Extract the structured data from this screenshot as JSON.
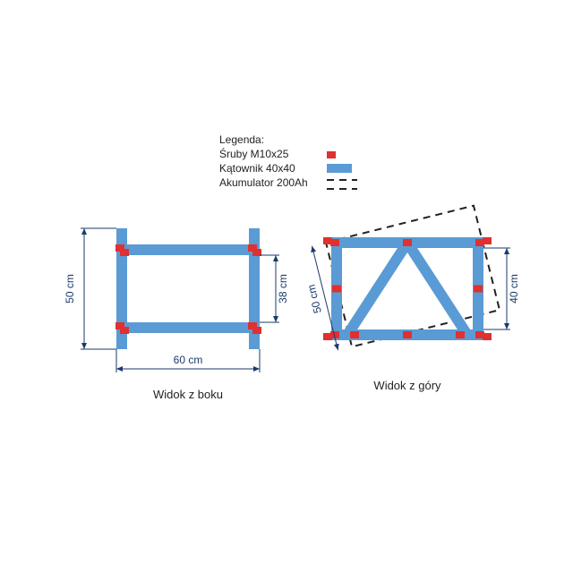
{
  "colors": {
    "beam": "#5a9bd5",
    "bolt": "#e03030",
    "dimension": "#1b3a6b",
    "dash": "#222222",
    "legend_text": "#222222",
    "caption_text": "#222222",
    "background": "#ffffff"
  },
  "legend": {
    "title": "Legenda:",
    "items": [
      {
        "label": "Śruby M10x25",
        "swatch": "bolt"
      },
      {
        "label": "Kątownik 40x40",
        "swatch": "beam"
      },
      {
        "label": "Akumulator 200Ah",
        "swatch": "dash"
      }
    ],
    "font_size": 12
  },
  "views": {
    "side": {
      "caption": "Widok z boku",
      "dims": {
        "height_overall": "50 cm",
        "height_inner": "38 cm",
        "width_bottom": "60 cm"
      }
    },
    "top": {
      "caption": "Widok z góry",
      "dims": {
        "battery_side": "50 cm",
        "frame_inner": "40 cm"
      }
    }
  },
  "caption_font_size": 13,
  "dimension_font_size": 12
}
